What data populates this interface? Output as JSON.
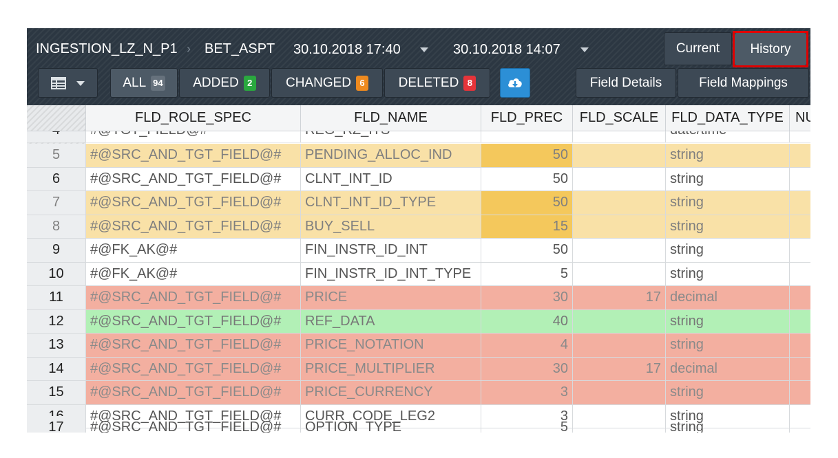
{
  "header": {
    "breadcrumb": [
      "INGESTION_LZ_N_P1",
      "BET_ASPT"
    ],
    "date_from": "30.10.2018 17:40",
    "date_to": "30.10.2018 14:07",
    "view_buttons": {
      "current": "Current",
      "history": "History"
    }
  },
  "filters": {
    "all": {
      "label": "ALL",
      "count": "94"
    },
    "added": {
      "label": "ADDED",
      "count": "2"
    },
    "changed": {
      "label": "CHANGED",
      "count": "6"
    },
    "deleted": {
      "label": "DELETED",
      "count": "8"
    },
    "field_details": "Field Details",
    "field_mappings": "Field Mappings"
  },
  "colors": {
    "changed": "#f9e1a7",
    "changed_cell": "#f4c85c",
    "deleted": "#f3afa0",
    "added": "#b2f0b6",
    "highlight_border": "#e00000"
  },
  "table": {
    "columns": [
      "FLD_ROLE_SPEC",
      "FLD_NAME",
      "FLD_PREC",
      "FLD_SCALE",
      "FLD_DATA_TYPE",
      "NU"
    ],
    "top_partial": {
      "idx": "4",
      "role": "#@TGT_FIELD@#",
      "name": "REG_RZ_ITS",
      "type": "date/time"
    },
    "rows": [
      {
        "idx": "5",
        "role": "#@SRC_AND_TGT_FIELD@#",
        "name": "PENDING_ALLOC_IND",
        "prec": "50",
        "scale": "",
        "type": "string",
        "status": "changed"
      },
      {
        "idx": "6",
        "role": "#@SRC_AND_TGT_FIELD@#",
        "name": "CLNT_INT_ID",
        "prec": "50",
        "scale": "",
        "type": "string",
        "status": "none"
      },
      {
        "idx": "7",
        "role": "#@SRC_AND_TGT_FIELD@#",
        "name": "CLNT_INT_ID_TYPE",
        "prec": "50",
        "scale": "",
        "type": "string",
        "status": "changed"
      },
      {
        "idx": "8",
        "role": "#@SRC_AND_TGT_FIELD@#",
        "name": "BUY_SELL",
        "prec": "15",
        "scale": "",
        "type": "string",
        "status": "changed"
      },
      {
        "idx": "9",
        "role": "#@FK_AK@#",
        "name": "FIN_INSTR_ID_INT",
        "prec": "50",
        "scale": "",
        "type": "string",
        "status": "none"
      },
      {
        "idx": "10",
        "role": "#@FK_AK@#",
        "name": "FIN_INSTR_ID_INT_TYPE",
        "prec": "5",
        "scale": "",
        "type": "string",
        "status": "none"
      },
      {
        "idx": "11",
        "role": "#@SRC_AND_TGT_FIELD@#",
        "name": "PRICE",
        "prec": "30",
        "scale": "17",
        "type": "decimal",
        "status": "deleted"
      },
      {
        "idx": "12",
        "role": "#@SRC_AND_TGT_FIELD@#",
        "name": "REF_DATA",
        "prec": "40",
        "scale": "",
        "type": "string",
        "status": "added"
      },
      {
        "idx": "13",
        "role": "#@SRC_AND_TGT_FIELD@#",
        "name": "PRICE_NOTATION",
        "prec": "4",
        "scale": "",
        "type": "string",
        "status": "deleted"
      },
      {
        "idx": "14",
        "role": "#@SRC_AND_TGT_FIELD@#",
        "name": "PRICE_MULTIPLIER",
        "prec": "30",
        "scale": "17",
        "type": "decimal",
        "status": "deleted"
      },
      {
        "idx": "15",
        "role": "#@SRC_AND_TGT_FIELD@#",
        "name": "PRICE_CURRENCY",
        "prec": "3",
        "scale": "",
        "type": "string",
        "status": "deleted"
      },
      {
        "idx": "16",
        "role": "#@SRC_AND_TGT_FIELD@#",
        "name": "CURR_CODE_LEG2",
        "prec": "3",
        "scale": "",
        "type": "string",
        "status": "none"
      }
    ],
    "bottom_partial": {
      "idx": "17",
      "role": "#@SRC_AND_TGT_FIELD@#",
      "name": "OPTION_TYPE",
      "prec": "5",
      "type": "string"
    }
  }
}
